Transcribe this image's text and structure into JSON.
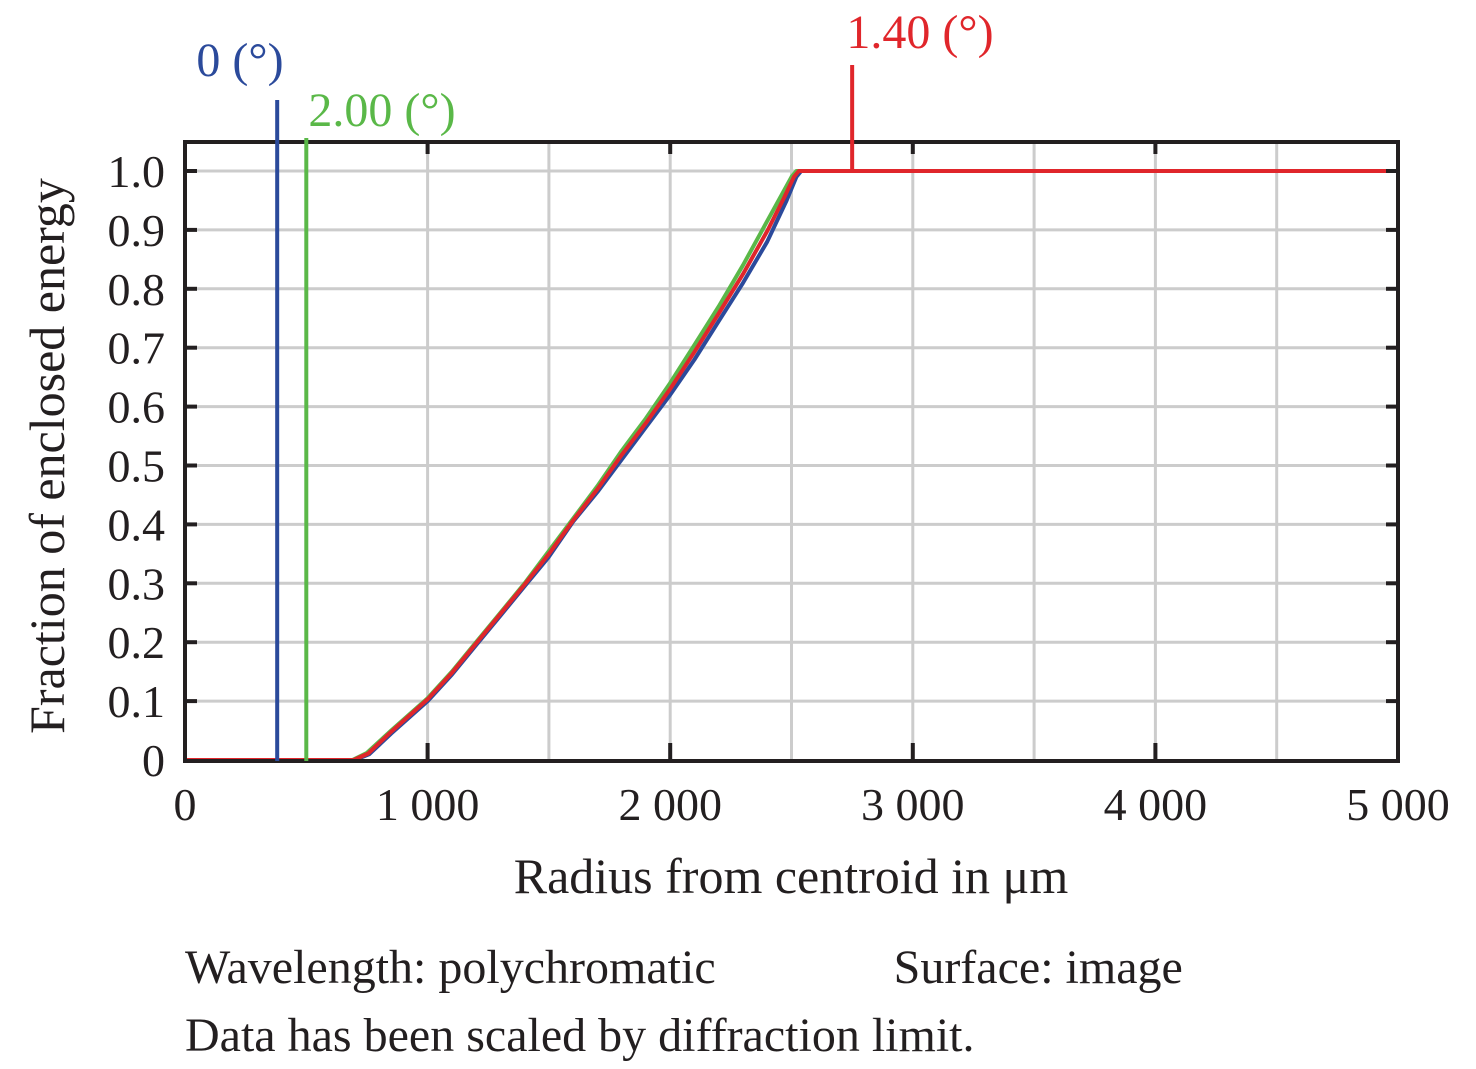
{
  "chart_data": {
    "type": "line",
    "title": "",
    "xlabel": "Radius from centroid in μm",
    "ylabel": "Fraction of enclosed energy",
    "xlim": [
      0,
      5000
    ],
    "ylim": [
      0,
      1.0
    ],
    "x_ticks": [
      0,
      1000,
      2000,
      3000,
      4000,
      5000
    ],
    "x_tick_labels": [
      "0",
      "1 000",
      "2 000",
      "3 000",
      "4 000",
      "5 000"
    ],
    "y_ticks": [
      0,
      0.1,
      0.2,
      0.3,
      0.4,
      0.5,
      0.6,
      0.7,
      0.8,
      0.9,
      1.0
    ],
    "y_tick_labels": [
      "0",
      "0.1",
      "0.2",
      "0.3",
      "0.4",
      "0.5",
      "0.6",
      "0.7",
      "0.8",
      "0.9",
      "1.0"
    ],
    "x_grid_step": 500,
    "y_grid_step": 0.1,
    "grid": true,
    "legend": "field markers above plot (top)",
    "series": [
      {
        "name": "0 (°)",
        "color": "#2b4a9b",
        "marker_x": 380,
        "x": [
          0,
          700,
          760,
          850,
          1000,
          1100,
          1200,
          1300,
          1400,
          1500,
          1600,
          1700,
          1800,
          1900,
          2000,
          2100,
          2200,
          2300,
          2400,
          2480,
          2520,
          2540,
          5000
        ],
        "y": [
          0,
          0,
          0.01,
          0.045,
          0.1,
          0.145,
          0.195,
          0.245,
          0.295,
          0.345,
          0.405,
          0.455,
          0.51,
          0.565,
          0.62,
          0.68,
          0.745,
          0.81,
          0.88,
          0.95,
          0.99,
          1.0,
          1.0
        ]
      },
      {
        "name": "2.00 (°)",
        "color": "#5ab848",
        "marker_x": 500,
        "x": [
          0,
          690,
          750,
          850,
          1000,
          1100,
          1200,
          1300,
          1400,
          1500,
          1600,
          1700,
          1800,
          1900,
          2000,
          2100,
          2200,
          2300,
          2400,
          2460,
          2500,
          2520,
          5000
        ],
        "y": [
          0,
          0,
          0.012,
          0.05,
          0.105,
          0.15,
          0.2,
          0.25,
          0.3,
          0.355,
          0.41,
          0.465,
          0.525,
          0.58,
          0.64,
          0.705,
          0.77,
          0.84,
          0.915,
          0.96,
          0.99,
          1.0,
          1.0
        ]
      },
      {
        "name": "1.40 (°)",
        "color": "#e0262b",
        "marker_x": 2750,
        "x": [
          0,
          695,
          755,
          850,
          1000,
          1100,
          1200,
          1300,
          1400,
          1500,
          1600,
          1700,
          1800,
          1900,
          2000,
          2100,
          2200,
          2300,
          2400,
          2470,
          2510,
          2530,
          5000
        ],
        "y": [
          0,
          0,
          0.011,
          0.048,
          0.103,
          0.148,
          0.198,
          0.248,
          0.298,
          0.35,
          0.407,
          0.46,
          0.518,
          0.572,
          0.63,
          0.693,
          0.758,
          0.825,
          0.898,
          0.955,
          0.99,
          1.0,
          1.0
        ]
      }
    ],
    "annotations": [
      "Wavelength: polychromatic",
      "Surface: image",
      "Data has been scaled by diffraction limit."
    ]
  },
  "footer": {
    "wavelength": "Wavelength: polychromatic",
    "surface": "Surface: image",
    "note": "Data has been scaled by diffraction limit."
  },
  "colors": {
    "axis": "#231f20",
    "grid": "#cccccc"
  }
}
